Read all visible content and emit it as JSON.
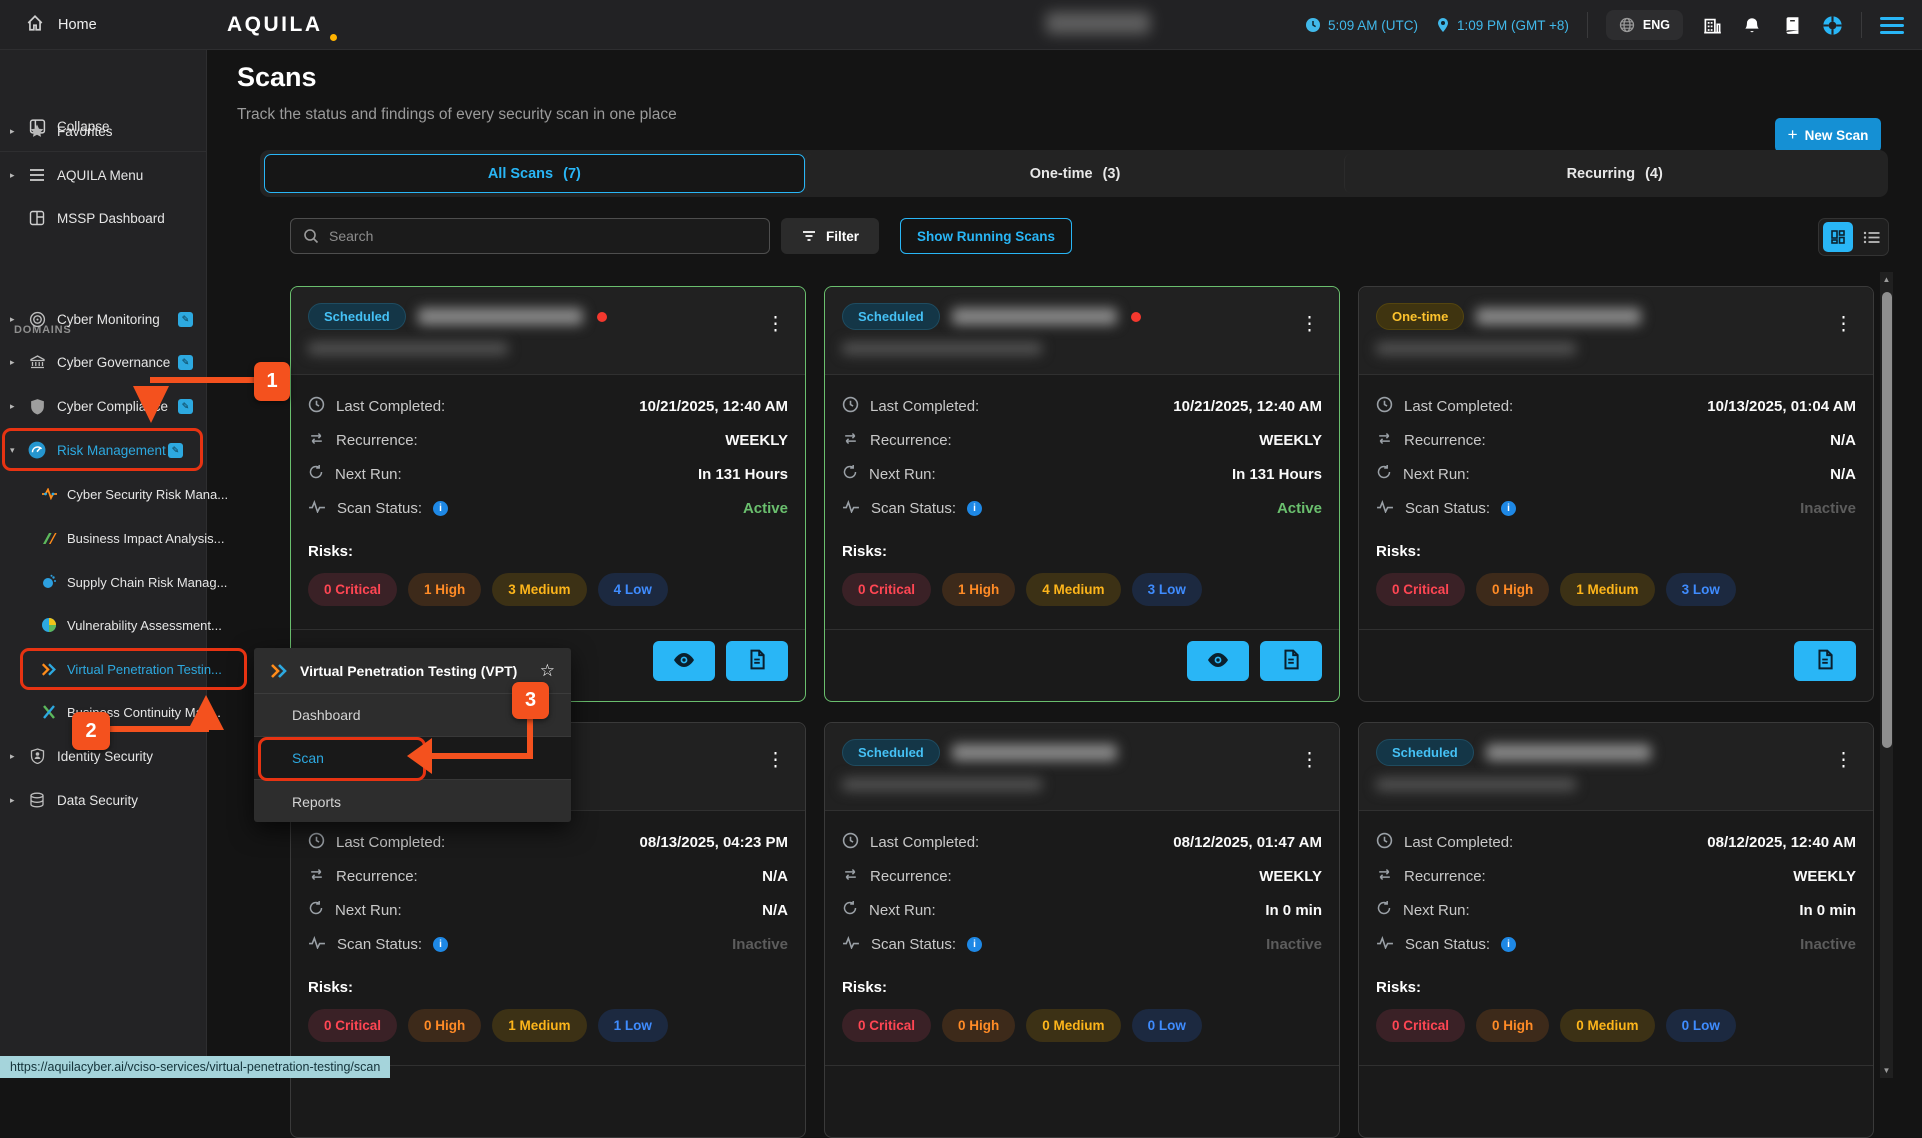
{
  "topbar": {
    "home_label": "Home",
    "brand": "AQUILA",
    "utc_time": "5:09 AM (UTC)",
    "local_time": "1:09 PM (GMT +8)",
    "language": "ENG"
  },
  "sidebar": {
    "collapse_label": "Collapse",
    "domains_label": "DOMAINS",
    "items": [
      {
        "label": "Favorites",
        "icon": "star-icon",
        "arrow": "right"
      },
      {
        "label": "AQUILA Menu",
        "icon": "menu-icon",
        "arrow": "right"
      },
      {
        "label": "MSSP Dashboard",
        "icon": "dashboard-icon"
      },
      {
        "label": "Cyber Monitoring",
        "icon": "radar-icon",
        "arrow": "right",
        "edit": true
      },
      {
        "label": "Cyber Governance",
        "icon": "bank-icon",
        "arrow": "right",
        "edit": true
      },
      {
        "label": "Cyber Compliance",
        "icon": "shield-icon",
        "arrow": "right",
        "edit": true
      },
      {
        "label": "Risk Management",
        "icon": "gauge-icon",
        "arrow": "down",
        "edit": true,
        "active": true
      },
      {
        "label": "Cyber Security Risk Mana...",
        "icon": "pulse-color-icon",
        "sub": true
      },
      {
        "label": "Business Impact Analysis...",
        "icon": "bars-color-icon",
        "sub": true
      },
      {
        "label": "Supply Chain Risk Manag...",
        "icon": "dots-circle-icon",
        "sub": true
      },
      {
        "label": "Vulnerability Assessment...",
        "icon": "pie-color-icon",
        "sub": true
      },
      {
        "label": "Virtual Penetration Testin...",
        "icon": "chevrons-icon",
        "sub": true,
        "active": true
      },
      {
        "label": "Business Continuity Man...",
        "icon": "x-color-icon",
        "sub": true
      },
      {
        "label": "Identity Security",
        "icon": "id-badge-icon",
        "arrow": "right"
      },
      {
        "label": "Data Security",
        "icon": "database-icon",
        "arrow": "right"
      }
    ]
  },
  "page": {
    "title": "Scans",
    "subtitle": "Track the status and findings of every security scan in one place",
    "new_scan_label": "New Scan"
  },
  "tabs": [
    {
      "label": "All Scans",
      "count": "(7)",
      "active": true
    },
    {
      "label": "One-time",
      "count": "(3)",
      "active": false
    },
    {
      "label": "Recurring",
      "count": "(4)",
      "active": false
    }
  ],
  "toolbar": {
    "search_placeholder": "Search",
    "filter_label": "Filter",
    "show_running_label": "Show Running Scans"
  },
  "field_labels": {
    "last_completed": "Last Completed:",
    "recurrence": "Recurrence:",
    "next_run": "Next Run:",
    "scan_status": "Scan Status:",
    "risks": "Risks:"
  },
  "cards": [
    {
      "badge": "Scheduled",
      "badge_type": "scheduled",
      "highlighted": true,
      "alert_dot": true,
      "covered": false,
      "last_completed": "10/21/2025, 12:40 AM",
      "recurrence": "WEEKLY",
      "next_run": "In 131 Hours",
      "scan_status": "Active",
      "status_type": "active",
      "risks": [
        {
          "label": "0 Critical",
          "level": "critical"
        },
        {
          "label": "1 High",
          "level": "high"
        },
        {
          "label": "3 Medium",
          "level": "medium"
        },
        {
          "label": "4 Low",
          "level": "low"
        }
      ],
      "actions": [
        "view",
        "report"
      ]
    },
    {
      "badge": "Scheduled",
      "badge_type": "scheduled",
      "highlighted": true,
      "alert_dot": true,
      "covered": false,
      "last_completed": "10/21/2025, 12:40 AM",
      "recurrence": "WEEKLY",
      "next_run": "In 131 Hours",
      "scan_status": "Active",
      "status_type": "active",
      "risks": [
        {
          "label": "0 Critical",
          "level": "critical"
        },
        {
          "label": "1 High",
          "level": "high"
        },
        {
          "label": "4 Medium",
          "level": "medium"
        },
        {
          "label": "3 Low",
          "level": "low"
        }
      ],
      "actions": [
        "view",
        "report"
      ]
    },
    {
      "badge": "One-time",
      "badge_type": "one-time",
      "highlighted": false,
      "alert_dot": false,
      "covered": false,
      "last_completed": "10/13/2025, 01:04 AM",
      "recurrence": "N/A",
      "next_run": "N/A",
      "scan_status": "Inactive",
      "status_type": "inactive",
      "risks": [
        {
          "label": "0 Critical",
          "level": "critical"
        },
        {
          "label": "0 High",
          "level": "high"
        },
        {
          "label": "1 Medium",
          "level": "medium"
        },
        {
          "label": "3 Low",
          "level": "low"
        }
      ],
      "actions": [
        "report"
      ]
    },
    {
      "badge": null,
      "badge_type": null,
      "highlighted": false,
      "alert_dot": false,
      "covered": true,
      "last_completed": "08/13/2025, 04:23 PM",
      "recurrence": "N/A",
      "next_run": "N/A",
      "scan_status": "Inactive",
      "status_type": "inactive",
      "risks": [
        {
          "label": "0 Critical",
          "level": "critical"
        },
        {
          "label": "0 High",
          "level": "high"
        },
        {
          "label": "1 Medium",
          "level": "medium"
        },
        {
          "label": "1 Low",
          "level": "low"
        }
      ],
      "actions": []
    },
    {
      "badge": "Scheduled",
      "badge_type": "scheduled",
      "highlighted": false,
      "alert_dot": false,
      "covered": false,
      "last_completed": "08/12/2025, 01:47 AM",
      "recurrence": "WEEKLY",
      "next_run": "In 0 min",
      "scan_status": "Inactive",
      "status_type": "inactive",
      "risks": [
        {
          "label": "0 Critical",
          "level": "critical"
        },
        {
          "label": "0 High",
          "level": "high"
        },
        {
          "label": "0 Medium",
          "level": "medium"
        },
        {
          "label": "0 Low",
          "level": "low"
        }
      ],
      "actions": []
    },
    {
      "badge": "Scheduled",
      "badge_type": "scheduled",
      "highlighted": false,
      "alert_dot": false,
      "covered": false,
      "last_completed": "08/12/2025, 12:40 AM",
      "recurrence": "WEEKLY",
      "next_run": "In 0 min",
      "scan_status": "Inactive",
      "status_type": "inactive",
      "risks": [
        {
          "label": "0 Critical",
          "level": "critical"
        },
        {
          "label": "0 High",
          "level": "high"
        },
        {
          "label": "0 Medium",
          "level": "medium"
        },
        {
          "label": "0 Low",
          "level": "low"
        }
      ],
      "actions": []
    }
  ],
  "context_menu": {
    "title": "Virtual Penetration Testing (VPT)",
    "items": [
      {
        "label": "Dashboard",
        "active": false
      },
      {
        "label": "Scan",
        "active": true
      },
      {
        "label": "Reports",
        "active": false
      }
    ]
  },
  "annotations": {
    "step1": "1",
    "step2": "2",
    "step3": "3"
  },
  "status_bar": {
    "url": "https://aquilacyber.ai/vciso-services/virtual-penetration-testing/scan"
  },
  "colors": {
    "accent": "#29b6f6",
    "highlight_green": "#6abf6e",
    "annotation": "#f4511e",
    "annotation_outline": "#e73312"
  }
}
